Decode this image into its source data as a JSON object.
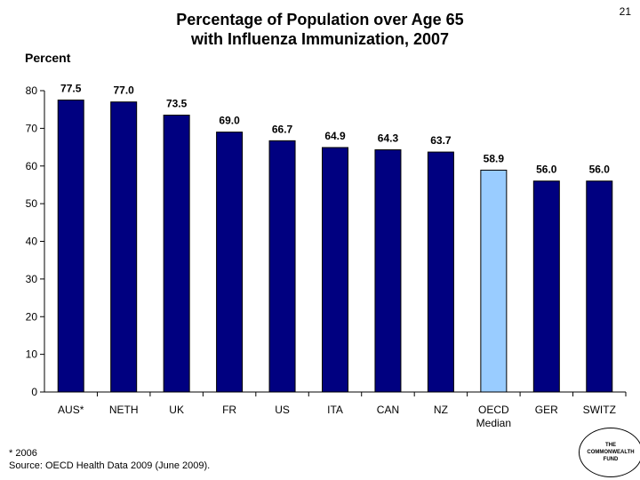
{
  "slide": {
    "page_number": "21",
    "footnote": "* 2006",
    "source": "Source: OECD Health Data 2009 (June 2009).",
    "logo_lines": [
      "THE",
      "COMMONWEALTH",
      "FUND"
    ]
  },
  "chart_data": {
    "type": "bar",
    "title_lines": [
      "Percentage of Population over Age 65",
      "with Influenza Immunization, 2007"
    ],
    "ylabel": "Percent",
    "xlabel": "",
    "categories": [
      [
        "AUS*"
      ],
      [
        "NETH"
      ],
      [
        "UK"
      ],
      [
        "FR"
      ],
      [
        "US"
      ],
      [
        "ITA"
      ],
      [
        "CAN"
      ],
      [
        "NZ"
      ],
      [
        "OECD",
        "Median"
      ],
      [
        "GER"
      ],
      [
        "SWITZ"
      ]
    ],
    "values": [
      77.5,
      77.0,
      73.5,
      69.0,
      66.7,
      64.9,
      64.3,
      63.7,
      58.9,
      56.0,
      56.0
    ],
    "value_labels": [
      "77.5",
      "77.0",
      "73.5",
      "69.0",
      "66.7",
      "64.9",
      "64.3",
      "63.7",
      "58.9",
      "56.0",
      "56.0"
    ],
    "ylim": [
      0,
      80
    ],
    "yticks": [
      0,
      10,
      20,
      30,
      40,
      50,
      60,
      70,
      80
    ],
    "grid": false,
    "legend": "none",
    "colors": {
      "bar": "#000080",
      "highlight": "#99ccff",
      "outline": "#000000"
    },
    "highlight_index": 8
  }
}
